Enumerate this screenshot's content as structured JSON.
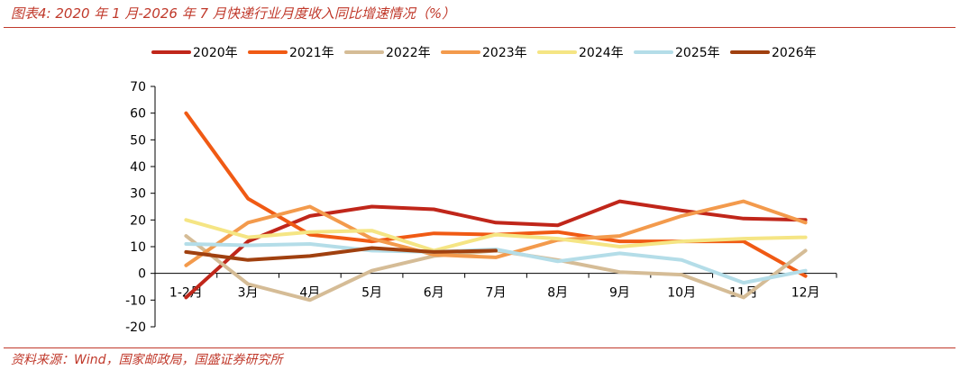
{
  "header": {
    "title": "图表4:  2020 年 1 月-2026 年 7 月快递行业月度收入同比增速情况（%）"
  },
  "footer": {
    "source": "资料来源：Wind，国家邮政局，国盛证券研究所"
  },
  "colors": {
    "accent": "#C0392B",
    "axis": "#000000"
  },
  "chart_data": {
    "type": "line",
    "title": "",
    "xlabel": "",
    "ylabel": "",
    "categories": [
      "1-2月",
      "3月",
      "4月",
      "5月",
      "6月",
      "7月",
      "8月",
      "9月",
      "10月",
      "11月",
      "12月"
    ],
    "ylim": [
      -20,
      70
    ],
    "yticks": [
      -20,
      -10,
      0,
      10,
      20,
      30,
      40,
      50,
      60,
      70
    ],
    "grid": false,
    "legend_position": "top",
    "series": [
      {
        "name": "2020年",
        "color": "#C0261A",
        "values": [
          -9,
          12,
          21.5,
          25,
          24,
          19,
          18,
          27,
          23.5,
          20.5,
          20
        ]
      },
      {
        "name": "2021年",
        "color": "#F05A14",
        "values": [
          60,
          28,
          14.5,
          12,
          15,
          14.5,
          15.5,
          12,
          12,
          12,
          -1
        ]
      },
      {
        "name": "2022年",
        "color": "#D5BC96",
        "values": [
          14,
          -4,
          -10,
          1,
          6.5,
          8.5,
          5,
          0.5,
          -0.5,
          -9,
          8.5
        ]
      },
      {
        "name": "2023年",
        "color": "#F39A4C",
        "values": [
          3,
          19,
          25,
          13,
          7,
          6,
          12.5,
          14,
          21.5,
          27,
          19
        ]
      },
      {
        "name": "2024年",
        "color": "#F5E584",
        "values": [
          20,
          13.5,
          15.5,
          16,
          8.5,
          14.5,
          13,
          10,
          12,
          13,
          13.5
        ]
      },
      {
        "name": "2025年",
        "color": "#B4DDE8",
        "values": [
          11,
          10.5,
          11,
          8.5,
          8,
          9,
          4.5,
          7.5,
          5,
          -3.5,
          1
        ]
      },
      {
        "name": "2026年",
        "color": "#A0400F",
        "values": [
          8,
          5,
          6.5,
          9.5,
          8,
          8.5,
          null,
          null,
          null,
          null,
          null
        ]
      }
    ]
  }
}
